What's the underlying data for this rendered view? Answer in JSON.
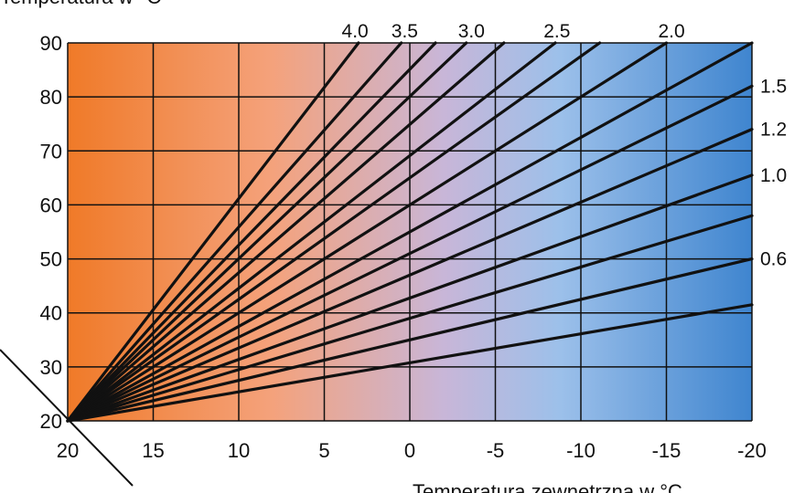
{
  "chart_data": {
    "type": "line",
    "title": "",
    "ylabel": "Temperatura w °C",
    "xlabel": "Temperatura zewnętrzna w °C",
    "xlim": [
      20,
      -20
    ],
    "ylim": [
      20,
      90
    ],
    "x_ticks": [
      "20",
      "15",
      "10",
      "5",
      "0",
      "-5",
      "-10",
      "-15",
      "-20"
    ],
    "y_ticks": [
      "20",
      "30",
      "40",
      "50",
      "60",
      "70",
      "80",
      "90"
    ],
    "grid": true,
    "origin": [
      20,
      20
    ],
    "background_gradient": [
      "#f07a28",
      "#f4a27c",
      "#c8b6d8",
      "#9cc0ea",
      "#3f85cf"
    ],
    "line_color": "#111111",
    "series": [
      {
        "slope": 4.0,
        "end": [
          3.0,
          90
        ]
      },
      {
        "slope": 3.5,
        "end": [
          0.5,
          90
        ]
      },
      {
        "slope": 3.25,
        "end": [
          -1.5,
          90
        ]
      },
      {
        "slope": 3.0,
        "end": [
          -3.3,
          90
        ]
      },
      {
        "slope": 2.75,
        "end": [
          -5.5,
          90
        ]
      },
      {
        "slope": 2.5,
        "end": [
          -8.5,
          90
        ]
      },
      {
        "slope": 2.25,
        "end": [
          -11.1,
          90
        ]
      },
      {
        "slope": 2.0,
        "end": [
          -15.0,
          90
        ]
      },
      {
        "slope": 1.75,
        "end": [
          -20,
          90
        ]
      },
      {
        "slope": 1.5,
        "end": [
          -20,
          82
        ]
      },
      {
        "slope": 1.2,
        "end": [
          -20,
          74
        ]
      },
      {
        "slope": 1.0,
        "end": [
          -20,
          65.5
        ]
      },
      {
        "slope": 0.85,
        "end": [
          -20,
          58
        ]
      },
      {
        "slope": 0.6,
        "end": [
          -20,
          50
        ]
      },
      {
        "slope": 0.4,
        "end": [
          -20,
          41.5
        ]
      }
    ],
    "curve_labels": [
      {
        "text": "4.0",
        "x": 3.2
      },
      {
        "text": "3.5",
        "x": 0.3
      },
      {
        "text": "3.0",
        "x": -3.6
      },
      {
        "text": "2.5",
        "x": -8.6
      },
      {
        "text": "2.0",
        "x": -15.3
      },
      {
        "text": "1.5",
        "y": 82
      },
      {
        "text": "1.2",
        "y": 74
      },
      {
        "text": "1.0",
        "y": 65.5
      },
      {
        "text": "0.6",
        "y": 50
      }
    ]
  }
}
